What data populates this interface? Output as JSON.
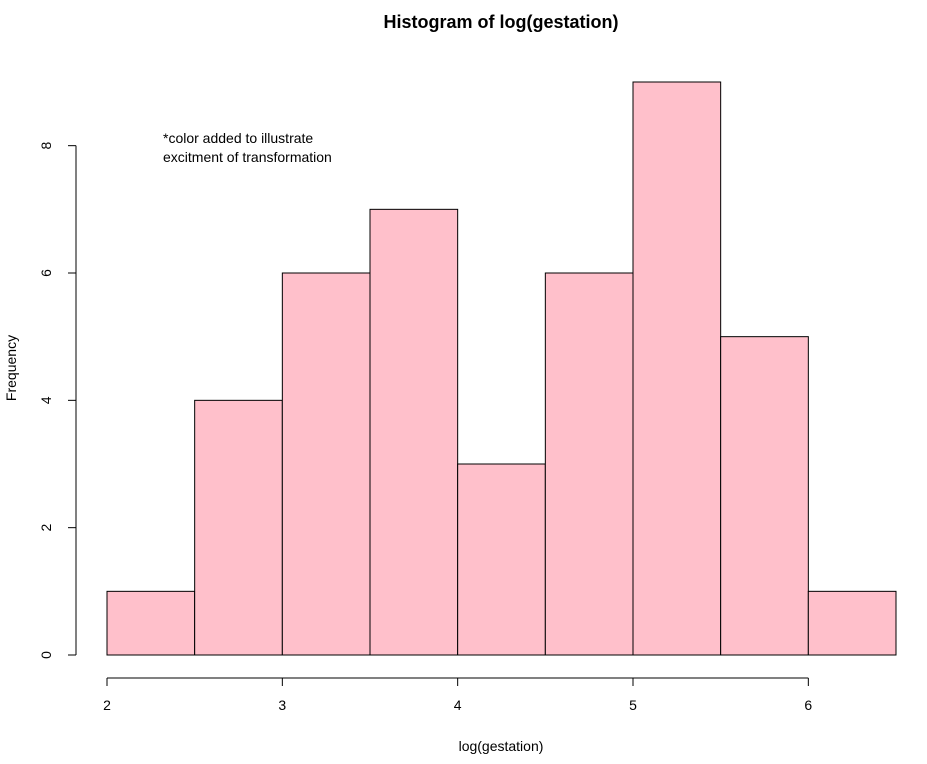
{
  "colors": {
    "bar_fill": "#ffc0cb",
    "bar_stroke": "#000000",
    "text": "#000000"
  },
  "chart_data": {
    "type": "bar",
    "histogram": true,
    "title": "Histogram of log(gestation)",
    "xlabel": "log(gestation)",
    "ylabel": "Frequency",
    "bins": [
      {
        "start": 2.0,
        "end": 2.5,
        "count": 1
      },
      {
        "start": 2.5,
        "end": 3.0,
        "count": 4
      },
      {
        "start": 3.0,
        "end": 3.5,
        "count": 6
      },
      {
        "start": 3.5,
        "end": 4.0,
        "count": 7
      },
      {
        "start": 4.0,
        "end": 4.5,
        "count": 3
      },
      {
        "start": 4.5,
        "end": 5.0,
        "count": 6
      },
      {
        "start": 5.0,
        "end": 5.5,
        "count": 9
      },
      {
        "start": 5.5,
        "end": 6.0,
        "count": 5
      },
      {
        "start": 6.0,
        "end": 6.5,
        "count": 1
      }
    ],
    "xlim": [
      2.0,
      6.5
    ],
    "ylim": [
      0,
      9
    ],
    "x_ticks": [
      2,
      3,
      4,
      5,
      6
    ],
    "x_tick_labels": [
      "2",
      "3",
      "4",
      "5",
      "6"
    ],
    "y_ticks": [
      0,
      2,
      4,
      6,
      8
    ],
    "y_tick_labels": [
      "0",
      "2",
      "4",
      "6",
      "8"
    ],
    "annotation_lines": [
      "*color added to illustrate",
      "excitment of transformation"
    ],
    "grid": false
  }
}
